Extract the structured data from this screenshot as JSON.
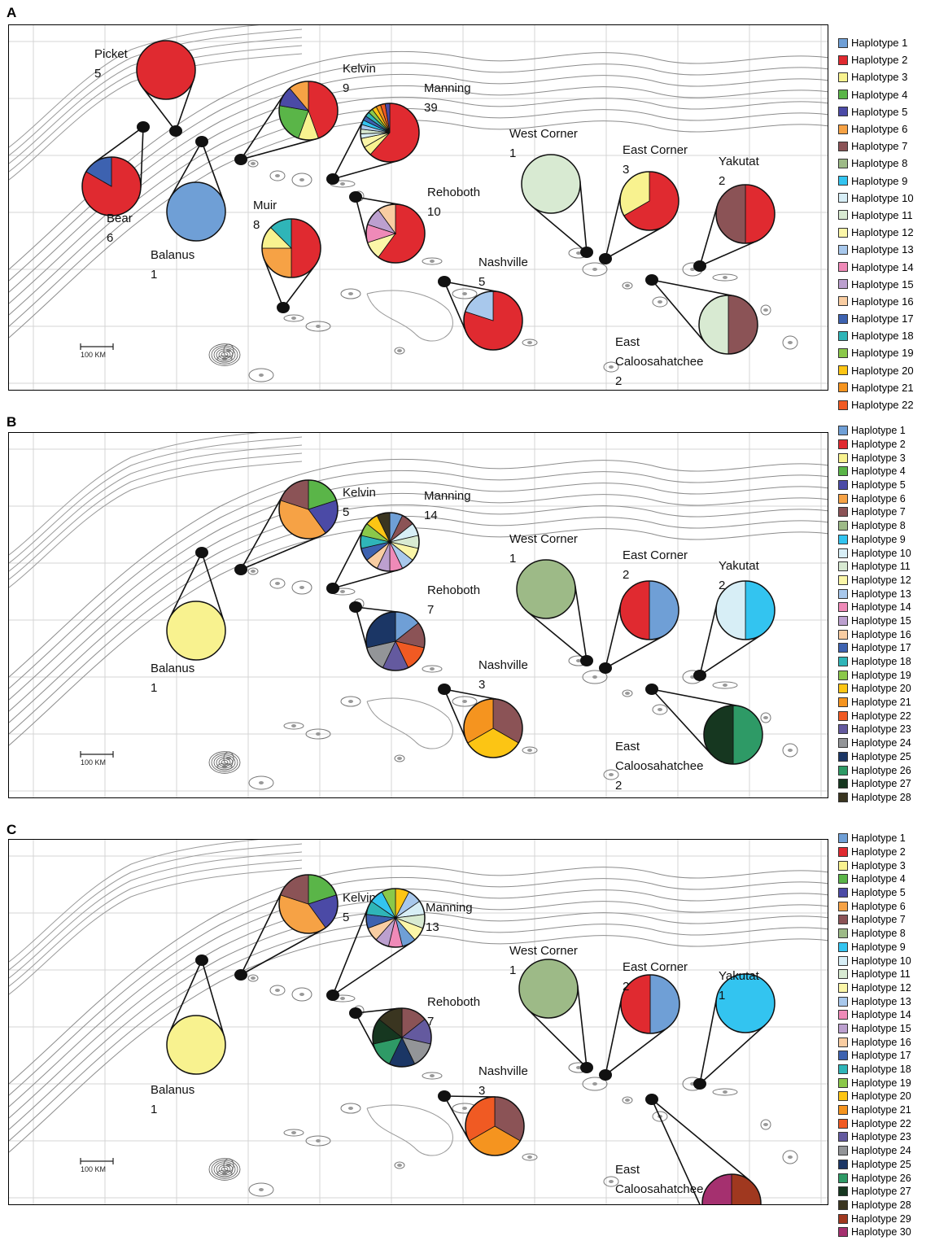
{
  "panels": [
    {
      "letter": "A",
      "scale_label": "100 KM",
      "legend": [
        "Haplotype 1",
        "Haplotype 2",
        "Haplotype 3",
        "Haplotype 4",
        "Haplotype 5",
        "Haplotype 6",
        "Haplotype 7",
        "Haplotype 8",
        "Haplotype 9",
        "Haplotype 10",
        "Haplotype 11",
        "Haplotype 12",
        "Haplotype 13",
        "Haplotype 14",
        "Haplotype 15",
        "Haplotype 16",
        "Haplotype 17",
        "Haplotype 18",
        "Haplotype 19",
        "Haplotype 20",
        "Haplotype 21",
        "Haplotype 22"
      ],
      "sites": [
        {
          "name": "Picket",
          "count": "5",
          "slices": [
            {
              "h": 2,
              "v": 5
            }
          ]
        },
        {
          "name": "Bear",
          "count": "6",
          "slices": [
            {
              "h": 2,
              "v": 5
            },
            {
              "h": 17,
              "v": 1
            }
          ]
        },
        {
          "name": "Balanus",
          "count": "1",
          "slices": [
            {
              "h": 1,
              "v": 1
            }
          ]
        },
        {
          "name": "Kelvin",
          "count": "9",
          "slices": [
            {
              "h": 2,
              "v": 4
            },
            {
              "h": 3,
              "v": 1
            },
            {
              "h": 4,
              "v": 2
            },
            {
              "h": 5,
              "v": 1
            },
            {
              "h": 6,
              "v": 1
            }
          ]
        },
        {
          "name": "Muir",
          "count": "8",
          "slices": [
            {
              "h": 2,
              "v": 4
            },
            {
              "h": 6,
              "v": 2
            },
            {
              "h": 3,
              "v": 1
            },
            {
              "h": 18,
              "v": 1
            }
          ]
        },
        {
          "name": "Manning",
          "count": "39",
          "slices": [
            {
              "h": 2,
              "v": 24
            },
            {
              "h": 3,
              "v": 2
            },
            {
              "h": 12,
              "v": 2
            },
            {
              "h": 10,
              "v": 1
            },
            {
              "h": 11,
              "v": 1
            },
            {
              "h": 13,
              "v": 1
            },
            {
              "h": 9,
              "v": 1
            },
            {
              "h": 17,
              "v": 1
            },
            {
              "h": 18,
              "v": 1
            },
            {
              "h": 19,
              "v": 1
            },
            {
              "h": 20,
              "v": 1
            },
            {
              "h": 21,
              "v": 1
            },
            {
              "h": 22,
              "v": 1
            },
            {
              "h": 5,
              "v": 1
            }
          ]
        },
        {
          "name": "Rehoboth",
          "count": "10",
          "slices": [
            {
              "h": 2,
              "v": 6
            },
            {
              "h": 12,
              "v": 1
            },
            {
              "h": 14,
              "v": 1
            },
            {
              "h": 15,
              "v": 1
            },
            {
              "h": 16,
              "v": 1
            }
          ]
        },
        {
          "name": "Nashville",
          "count": "5",
          "slices": [
            {
              "h": 2,
              "v": 4
            },
            {
              "h": 13,
              "v": 1
            }
          ]
        },
        {
          "name": "West Corner",
          "count": "1",
          "slices": [
            {
              "h": 11,
              "v": 1
            }
          ]
        },
        {
          "name": "East Corner",
          "count": "3",
          "slices": [
            {
              "h": 2,
              "v": 2
            },
            {
              "h": 3,
              "v": 1
            }
          ]
        },
        {
          "name": "Yakutat",
          "count": "2",
          "slices": [
            {
              "h": 2,
              "v": 1
            },
            {
              "h": 7,
              "v": 1
            }
          ]
        },
        {
          "name": "East Caloosahatchee",
          "count": "2",
          "slices": [
            {
              "h": 7,
              "v": 1
            },
            {
              "h": 11,
              "v": 1
            }
          ]
        }
      ]
    },
    {
      "letter": "B",
      "scale_label": "100 KM",
      "legend": [
        "Haplotype 1",
        "Haplotype 2",
        "Haplotype 3",
        "Haplotype 4",
        "Haplotype 5",
        "Haplotype 6",
        "Haplotype 7",
        "Haplotype 8",
        "Haplotype 9",
        "Haplotype 10",
        "Haplotype 11",
        "Haplotype 12",
        "Haplotype 13",
        "Haplotype 14",
        "Haplotype 15",
        "Haplotype 16",
        "Haplotype 17",
        "Haplotype 18",
        "Haplotype 19",
        "Haplotype 20",
        "Haplotype 21",
        "Haplotype 22",
        "Haplotype 23",
        "Haplotype 24",
        "Haplotype 25",
        "Haplotype 26",
        "Haplotype 27",
        "Haplotype 28"
      ],
      "sites": [
        {
          "name": "Balanus",
          "count": "1",
          "slices": [
            {
              "h": 3,
              "v": 1
            }
          ]
        },
        {
          "name": "Kelvin",
          "count": "5",
          "slices": [
            {
              "h": 4,
              "v": 1
            },
            {
              "h": 5,
              "v": 1
            },
            {
              "h": 6,
              "v": 2
            },
            {
              "h": 7,
              "v": 1
            }
          ]
        },
        {
          "name": "Manning",
          "count": "14",
          "slices": [
            {
              "h": 1,
              "v": 1
            },
            {
              "h": 7,
              "v": 1
            },
            {
              "h": 10,
              "v": 1
            },
            {
              "h": 11,
              "v": 1
            },
            {
              "h": 12,
              "v": 1
            },
            {
              "h": 13,
              "v": 1
            },
            {
              "h": 14,
              "v": 1
            },
            {
              "h": 15,
              "v": 1
            },
            {
              "h": 16,
              "v": 1
            },
            {
              "h": 17,
              "v": 1
            },
            {
              "h": 18,
              "v": 1
            },
            {
              "h": 19,
              "v": 1
            },
            {
              "h": 20,
              "v": 1
            },
            {
              "h": 28,
              "v": 1
            }
          ]
        },
        {
          "name": "Rehoboth",
          "count": "7",
          "slices": [
            {
              "h": 1,
              "v": 1
            },
            {
              "h": 7,
              "v": 1
            },
            {
              "h": 22,
              "v": 1
            },
            {
              "h": 23,
              "v": 1
            },
            {
              "h": 24,
              "v": 1
            },
            {
              "h": 25,
              "v": 2
            }
          ]
        },
        {
          "name": "Nashville",
          "count": "3",
          "slices": [
            {
              "h": 7,
              "v": 1
            },
            {
              "h": 20,
              "v": 1
            },
            {
              "h": 21,
              "v": 1
            }
          ]
        },
        {
          "name": "West Corner",
          "count": "1",
          "slices": [
            {
              "h": 8,
              "v": 1
            }
          ]
        },
        {
          "name": "East Corner",
          "count": "2",
          "slices": [
            {
              "h": 1,
              "v": 1
            },
            {
              "h": 2,
              "v": 1
            }
          ]
        },
        {
          "name": "Yakutat",
          "count": "2",
          "slices": [
            {
              "h": 9,
              "v": 1
            },
            {
              "h": 10,
              "v": 1
            }
          ]
        },
        {
          "name": "East Caloosahatchee",
          "count": "2",
          "slices": [
            {
              "h": 26,
              "v": 1
            },
            {
              "h": 27,
              "v": 1
            }
          ]
        }
      ]
    },
    {
      "letter": "C",
      "scale_label": "100 KM",
      "legend": [
        "Haplotype 1",
        "Haplotype 2",
        "Haplotype 3",
        "Haplotype 4",
        "Haplotype 5",
        "Haplotype 6",
        "Haplotype 7",
        "Haplotype 8",
        "Haplotype 9",
        "Haplotype 10",
        "Haplotype 11",
        "Haplotype 12",
        "Haplotype 13",
        "Haplotype 14",
        "Haplotype 15",
        "Haplotype 16",
        "Haplotype 17",
        "Haplotype 18",
        "Haplotype 19",
        "Haplotype 20",
        "Haplotype 21",
        "Haplotype 22",
        "Haplotype 23",
        "Haplotype 24",
        "Haplotype 25",
        "Haplotype 26",
        "Haplotype 27",
        "Haplotype 28",
        "Haplotype 29",
        "Haplotype 30"
      ],
      "sites": [
        {
          "name": "Balanus",
          "count": "1",
          "slices": [
            {
              "h": 3,
              "v": 1
            }
          ]
        },
        {
          "name": "Kelvin",
          "count": "5",
          "slices": [
            {
              "h": 4,
              "v": 1
            },
            {
              "h": 5,
              "v": 1
            },
            {
              "h": 6,
              "v": 2
            },
            {
              "h": 7,
              "v": 1
            }
          ]
        },
        {
          "name": "Manning",
          "count": "13",
          "slices": [
            {
              "h": 20,
              "v": 1
            },
            {
              "h": 13,
              "v": 1
            },
            {
              "h": 10,
              "v": 1
            },
            {
              "h": 11,
              "v": 1
            },
            {
              "h": 12,
              "v": 1
            },
            {
              "h": 1,
              "v": 1
            },
            {
              "h": 14,
              "v": 1
            },
            {
              "h": 15,
              "v": 1
            },
            {
              "h": 16,
              "v": 1
            },
            {
              "h": 17,
              "v": 1
            },
            {
              "h": 18,
              "v": 1
            },
            {
              "h": 9,
              "v": 1
            },
            {
              "h": 19,
              "v": 1
            }
          ]
        },
        {
          "name": "Rehoboth",
          "count": "7",
          "slices": [
            {
              "h": 7,
              "v": 1
            },
            {
              "h": 23,
              "v": 1
            },
            {
              "h": 24,
              "v": 1
            },
            {
              "h": 25,
              "v": 1
            },
            {
              "h": 26,
              "v": 1
            },
            {
              "h": 27,
              "v": 1
            },
            {
              "h": 28,
              "v": 1
            }
          ]
        },
        {
          "name": "Nashville",
          "count": "3",
          "slices": [
            {
              "h": 7,
              "v": 1
            },
            {
              "h": 21,
              "v": 1
            },
            {
              "h": 22,
              "v": 1
            }
          ]
        },
        {
          "name": "West Corner",
          "count": "1",
          "slices": [
            {
              "h": 8,
              "v": 1
            }
          ]
        },
        {
          "name": "East Corner",
          "count": "2",
          "slices": [
            {
              "h": 1,
              "v": 1
            },
            {
              "h": 2,
              "v": 1
            }
          ]
        },
        {
          "name": "Yakutat",
          "count": "1",
          "slices": [
            {
              "h": 9,
              "v": 1
            }
          ]
        },
        {
          "name": "East Caloosahatchee",
          "count": "2",
          "slices": [
            {
              "h": 29,
              "v": 1
            },
            {
              "h": 30,
              "v": 1
            }
          ]
        }
      ]
    }
  ],
  "colors": {
    "1": "#6f9fd6",
    "2": "#e02a30",
    "3": "#f8f28f",
    "4": "#5ab548",
    "5": "#4b4aa6",
    "6": "#f6a245",
    "7": "#8b5356",
    "8": "#9dba87",
    "9": "#33c4f0",
    "10": "#d7eef6",
    "11": "#d8ead2",
    "12": "#fbf6a8",
    "13": "#a8c8ec",
    "14": "#ef8ab8",
    "15": "#bca0cf",
    "16": "#f9cda2",
    "17": "#3d62b0",
    "18": "#2fb5b8",
    "19": "#8bc84a",
    "20": "#fcc514",
    "21": "#f5941f",
    "22": "#f05a23",
    "23": "#645a9f",
    "24": "#939598",
    "25": "#1b3665",
    "26": "#2e9a66",
    "27": "#163720",
    "28": "#3a3520",
    "29": "#a0381f",
    "30": "#a5306f"
  }
}
